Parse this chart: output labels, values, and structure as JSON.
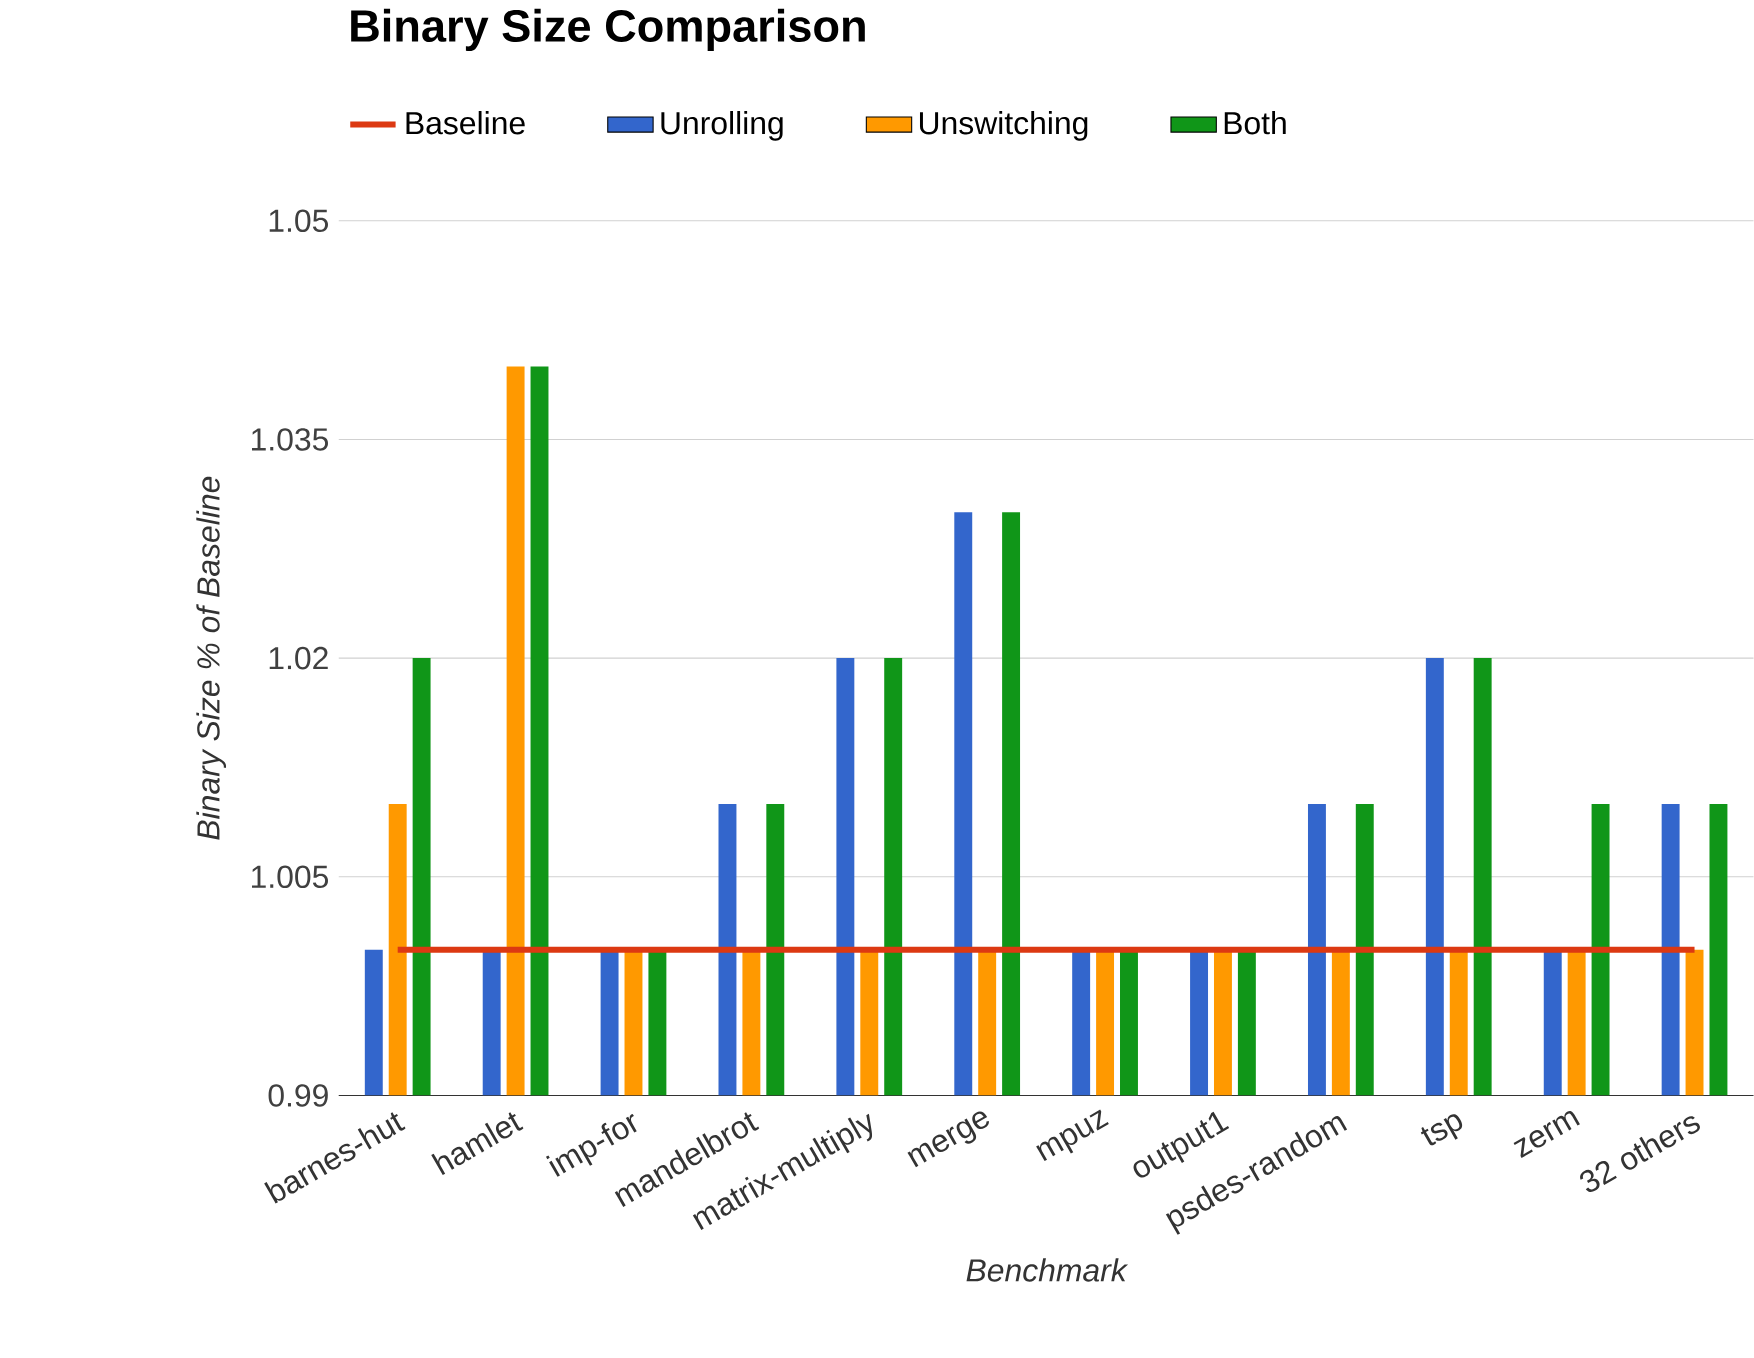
{
  "chart_data": {
    "type": "bar",
    "title": "Binary Size Comparison",
    "xlabel": "Benchmark",
    "ylabel": "Binary Size % of Baseline",
    "categories": [
      "barnes-hut",
      "hamlet",
      "imp-for",
      "mandelbrot",
      "matrix-multiply",
      "merge",
      "mpuz",
      "output1",
      "psdes-random",
      "tsp",
      "zerm",
      "32 others"
    ],
    "series": [
      {
        "name": "Baseline",
        "type": "line",
        "color": "#dc3912",
        "values": [
          1.0,
          1.0,
          1.0,
          1.0,
          1.0,
          1.0,
          1.0,
          1.0,
          1.0,
          1.0,
          1.0,
          1.0
        ]
      },
      {
        "name": "Unrolling",
        "color": "#3366cc",
        "values": [
          1.0,
          1.0,
          1.0,
          1.01,
          1.02,
          1.03,
          1.0,
          1.0,
          1.01,
          1.02,
          1.0,
          1.01
        ]
      },
      {
        "name": "Unswitching",
        "color": "#ff9900",
        "values": [
          1.01,
          1.04,
          1.0,
          1.0,
          1.0,
          1.0,
          1.0,
          1.0,
          1.0,
          1.0,
          1.0,
          1.0
        ]
      },
      {
        "name": "Both",
        "color": "#109618",
        "values": [
          1.02,
          1.04,
          1.0,
          1.01,
          1.02,
          1.03,
          1.0,
          1.0,
          1.01,
          1.02,
          1.01,
          1.01
        ]
      }
    ],
    "ylim": [
      0.99,
      1.05
    ],
    "yticks": [
      0.99,
      1.005,
      1.02,
      1.035,
      1.05
    ],
    "grid": "y",
    "legend": "top"
  }
}
